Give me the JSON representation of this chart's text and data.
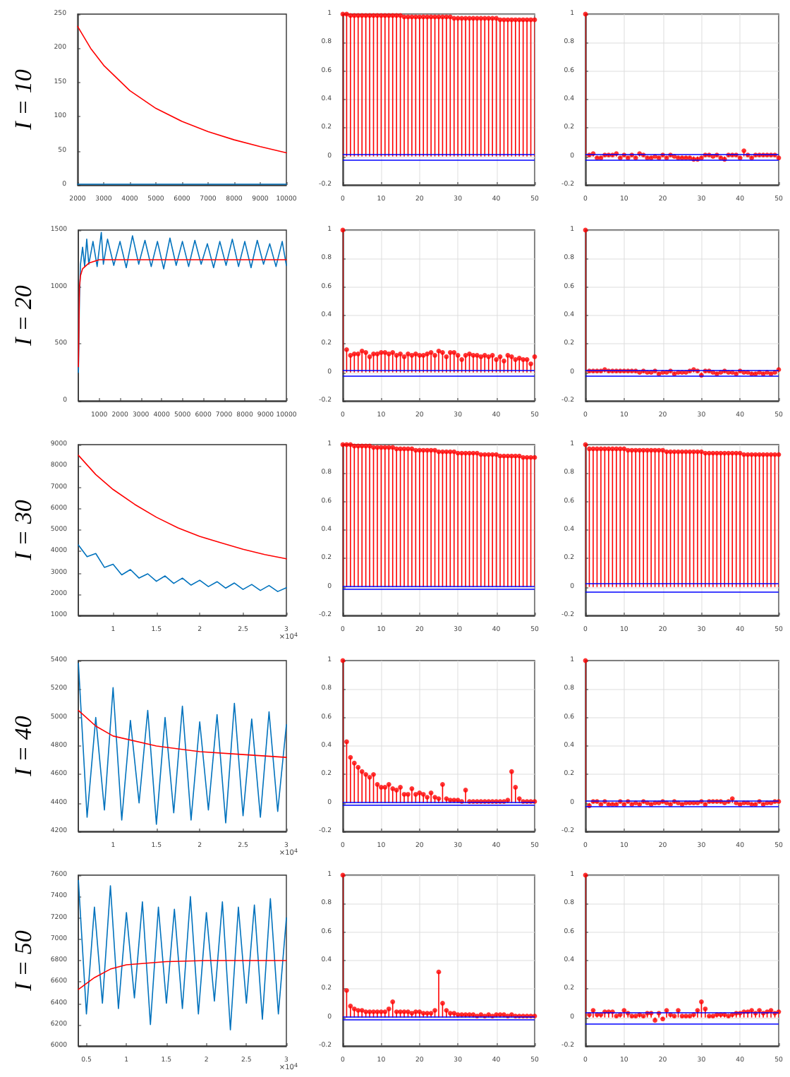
{
  "chart_data": [
    {
      "type": "line",
      "ylabel": "I = 10",
      "xlim": [
        2000,
        10000
      ],
      "xticks": [
        2000,
        3000,
        4000,
        5000,
        6000,
        7000,
        8000,
        9000,
        10000
      ],
      "ylim": [
        0,
        250
      ],
      "yticks": [
        0,
        50,
        100,
        150,
        200,
        250
      ],
      "series": [
        {
          "color": "#0072bd",
          "x": [
            2000,
            3000,
            4000,
            5000,
            6000,
            7000,
            8000,
            9000,
            10000
          ],
          "values": [
            1,
            1,
            1,
            1,
            1,
            1,
            1,
            1,
            1
          ]
        },
        {
          "color": "#ff0000",
          "x": [
            2000,
            2500,
            3000,
            4000,
            5000,
            6000,
            7000,
            8000,
            9000,
            10000
          ],
          "values": [
            232,
            200,
            175,
            138,
            112,
            93,
            78,
            66,
            56,
            47
          ]
        }
      ]
    },
    {
      "type": "lollipop",
      "color": "#ff0000",
      "marker": "circle",
      "grid": true,
      "xlim": [
        0,
        50
      ],
      "xticks": [
        0,
        10,
        20,
        30,
        40,
        50
      ],
      "ylim": [
        -0.2,
        1
      ],
      "yticks": [
        -0.2,
        0,
        0.2,
        0.4,
        0.6,
        0.8,
        1
      ],
      "x": [
        0,
        1,
        2,
        3,
        4,
        5,
        6,
        7,
        8,
        9,
        10,
        11,
        12,
        13,
        14,
        15,
        16,
        17,
        18,
        19,
        20,
        21,
        22,
        23,
        24,
        25,
        26,
        27,
        28,
        29,
        30,
        31,
        32,
        33,
        34,
        35,
        36,
        37,
        38,
        39,
        40,
        41,
        42,
        43,
        44,
        45,
        46,
        47,
        48,
        49,
        50
      ],
      "values": [
        1,
        1,
        0.99,
        0.99,
        0.99,
        0.99,
        0.99,
        0.99,
        0.99,
        0.99,
        0.99,
        0.99,
        0.99,
        0.99,
        0.99,
        0.99,
        0.98,
        0.98,
        0.98,
        0.98,
        0.98,
        0.98,
        0.98,
        0.98,
        0.98,
        0.98,
        0.98,
        0.98,
        0.98,
        0.97,
        0.97,
        0.97,
        0.97,
        0.97,
        0.97,
        0.97,
        0.97,
        0.97,
        0.97,
        0.97,
        0.97,
        0.96,
        0.96,
        0.96,
        0.96,
        0.96,
        0.96,
        0.96,
        0.96,
        0.96,
        0.96
      ],
      "ref_lines": [
        {
          "axis": "y",
          "value": 0.02,
          "color": "#0000ff"
        },
        {
          "axis": "y",
          "value": -0.02,
          "color": "#0000ff"
        }
      ]
    },
    {
      "type": "lollipop",
      "color": "#ff0000",
      "marker": "circle",
      "grid": true,
      "xlim": [
        0,
        50
      ],
      "xticks": [
        0,
        10,
        20,
        30,
        40,
        50
      ],
      "ylim": [
        -0.2,
        1
      ],
      "yticks": [
        -0.2,
        0,
        0.2,
        0.4,
        0.6,
        0.8,
        1
      ],
      "x": [
        0,
        1,
        2,
        3,
        4,
        5,
        6,
        7,
        8,
        9,
        10,
        11,
        12,
        13,
        14,
        15,
        16,
        17,
        18,
        19,
        20,
        21,
        22,
        23,
        24,
        25,
        26,
        27,
        28,
        29,
        30,
        31,
        32,
        33,
        34,
        35,
        36,
        37,
        38,
        39,
        40,
        41,
        42,
        43,
        44,
        45,
        46,
        47,
        48,
        49,
        50
      ],
      "values": [
        1,
        0.01,
        0.02,
        -0.01,
        -0.01,
        0.01,
        0.01,
        0.01,
        0.02,
        -0.01,
        0.01,
        -0.01,
        0.01,
        -0.01,
        0.02,
        0.01,
        -0.01,
        -0.01,
        0,
        -0.01,
        0.01,
        -0.01,
        0.01,
        0,
        -0.01,
        -0.01,
        -0.01,
        -0.01,
        -0.02,
        -0.02,
        -0.01,
        0.01,
        0.01,
        0,
        0.01,
        -0.01,
        -0.02,
        0.01,
        0.01,
        0.01,
        -0.01,
        0.04,
        0.01,
        -0.01,
        0.01,
        0.01,
        0.01,
        0.01,
        0.01,
        0.01,
        -0.01
      ],
      "ref_lines": [
        {
          "axis": "y",
          "value": 0.02,
          "color": "#0000ff"
        },
        {
          "axis": "y",
          "value": -0.02,
          "color": "#0000ff"
        }
      ]
    },
    {
      "type": "line",
      "ylabel": "I = 20",
      "xlim": [
        0,
        10000
      ],
      "xticks": [
        1000,
        2000,
        3000,
        4000,
        5000,
        6000,
        7000,
        8000,
        9000,
        10000
      ],
      "ylim": [
        0,
        1500
      ],
      "yticks": [
        0,
        500,
        1000,
        1500
      ],
      "series": [
        {
          "color": "#0072bd",
          "x": [
            0,
            50,
            100,
            200,
            300,
            400,
            500,
            700,
            900,
            1100,
            1200,
            1400,
            1700,
            2000,
            2300,
            2600,
            2900,
            3200,
            3500,
            3800,
            4100,
            4400,
            4700,
            5000,
            5300,
            5600,
            5900,
            6200,
            6500,
            6800,
            7100,
            7400,
            7700,
            8000,
            8300,
            8600,
            8900,
            9200,
            9500,
            9800,
            10000
          ],
          "values": [
            250,
            900,
            1200,
            1350,
            1180,
            1420,
            1200,
            1400,
            1180,
            1480,
            1200,
            1420,
            1190,
            1400,
            1170,
            1450,
            1200,
            1410,
            1180,
            1400,
            1160,
            1430,
            1190,
            1400,
            1180,
            1410,
            1200,
            1380,
            1170,
            1400,
            1190,
            1420,
            1180,
            1400,
            1170,
            1410,
            1200,
            1380,
            1180,
            1400,
            1190
          ]
        },
        {
          "color": "#ff0000",
          "x": [
            0,
            50,
            100,
            200,
            500,
            1000,
            2000,
            10000
          ],
          "values": [
            300,
            1000,
            1100,
            1160,
            1210,
            1240,
            1240,
            1240
          ]
        }
      ]
    },
    {
      "type": "lollipop",
      "color": "#ff0000",
      "marker": "circle",
      "grid": true,
      "xlim": [
        0,
        50
      ],
      "xticks": [
        0,
        10,
        20,
        30,
        40,
        50
      ],
      "ylim": [
        -0.2,
        1
      ],
      "yticks": [
        -0.2,
        0,
        0.2,
        0.4,
        0.6,
        0.8,
        1
      ],
      "x": [
        0,
        1,
        2,
        3,
        4,
        5,
        6,
        7,
        8,
        9,
        10,
        11,
        12,
        13,
        14,
        15,
        16,
        17,
        18,
        19,
        20,
        21,
        22,
        23,
        24,
        25,
        26,
        27,
        28,
        29,
        30,
        31,
        32,
        33,
        34,
        35,
        36,
        37,
        38,
        39,
        40,
        41,
        42,
        43,
        44,
        45,
        46,
        47,
        48,
        49,
        50
      ],
      "values": [
        1,
        0.16,
        0.12,
        0.13,
        0.13,
        0.15,
        0.14,
        0.11,
        0.13,
        0.13,
        0.14,
        0.14,
        0.13,
        0.14,
        0.12,
        0.13,
        0.11,
        0.13,
        0.12,
        0.13,
        0.12,
        0.12,
        0.13,
        0.14,
        0.12,
        0.15,
        0.14,
        0.11,
        0.14,
        0.14,
        0.12,
        0.09,
        0.12,
        0.13,
        0.12,
        0.12,
        0.11,
        0.12,
        0.11,
        0.12,
        0.09,
        0.11,
        0.08,
        0.12,
        0.11,
        0.09,
        0.1,
        0.09,
        0.09,
        0.06,
        0.11
      ],
      "ref_lines": [
        {
          "axis": "y",
          "value": 0.02,
          "color": "#0000ff"
        },
        {
          "axis": "y",
          "value": -0.02,
          "color": "#0000ff"
        }
      ]
    },
    {
      "type": "lollipop",
      "color": "#ff0000",
      "marker": "circle",
      "grid": true,
      "xlim": [
        0,
        50
      ],
      "xticks": [
        0,
        10,
        20,
        30,
        40,
        50
      ],
      "ylim": [
        -0.2,
        1
      ],
      "yticks": [
        -0.2,
        0,
        0.2,
        0.4,
        0.6,
        0.8,
        1
      ],
      "x": [
        0,
        1,
        2,
        3,
        4,
        5,
        6,
        7,
        8,
        9,
        10,
        11,
        12,
        13,
        14,
        15,
        16,
        17,
        18,
        19,
        20,
        21,
        22,
        23,
        24,
        25,
        26,
        27,
        28,
        29,
        30,
        31,
        32,
        33,
        34,
        35,
        36,
        37,
        38,
        39,
        40,
        41,
        42,
        43,
        44,
        45,
        46,
        47,
        48,
        49,
        50
      ],
      "values": [
        1,
        0.01,
        0.01,
        0.01,
        0.01,
        0.02,
        0.01,
        0.01,
        0.01,
        0.01,
        0.01,
        0.01,
        0.01,
        0.01,
        0,
        0.01,
        0,
        0,
        0.01,
        -0.01,
        0,
        0,
        0.01,
        -0.01,
        0,
        0,
        0,
        0.01,
        0.02,
        0.01,
        -0.02,
        0.01,
        0.01,
        0,
        -0.01,
        0,
        0.01,
        0,
        0,
        -0.01,
        0.01,
        0,
        0,
        -0.01,
        -0.01,
        0,
        -0.01,
        0,
        -0.01,
        0,
        0.02
      ],
      "ref_lines": [
        {
          "axis": "y",
          "value": 0.02,
          "color": "#0000ff"
        },
        {
          "axis": "y",
          "value": -0.02,
          "color": "#0000ff"
        }
      ]
    },
    {
      "type": "line",
      "ylabel": "I = 30",
      "xlim": [
        0.6,
        3
      ],
      "xticks": [
        1,
        1.5,
        2,
        2.5,
        3
      ],
      "ylim": [
        1000,
        9000
      ],
      "yticks": [
        1000,
        2000,
        3000,
        4000,
        5000,
        6000,
        7000,
        8000,
        9000
      ],
      "annotations": [
        "×10$^{4}$"
      ],
      "series": [
        {
          "color": "#0072bd",
          "x": [
            0.6,
            0.7,
            0.8,
            0.9,
            1,
            1.1,
            1.2,
            1.3,
            1.4,
            1.5,
            1.6,
            1.7,
            1.8,
            1.9,
            2,
            2.1,
            2.2,
            2.3,
            2.4,
            2.5,
            2.6,
            2.7,
            2.8,
            2.9,
            3
          ],
          "values": [
            4300,
            3750,
            3900,
            3250,
            3400,
            2900,
            3150,
            2750,
            2950,
            2600,
            2850,
            2500,
            2750,
            2420,
            2650,
            2350,
            2580,
            2280,
            2520,
            2220,
            2450,
            2170,
            2400,
            2120,
            2300
          ]
        },
        {
          "color": "#ff0000",
          "x": [
            0.6,
            0.8,
            1,
            1.25,
            1.5,
            1.75,
            2,
            2.25,
            2.5,
            2.75,
            3
          ],
          "values": [
            8500,
            7600,
            6900,
            6200,
            5600,
            5100,
            4700,
            4400,
            4100,
            3850,
            3650
          ]
        }
      ]
    },
    {
      "type": "lollipop",
      "color": "#ff0000",
      "marker": "circle",
      "grid": true,
      "xlim": [
        0,
        50
      ],
      "xticks": [
        0,
        10,
        20,
        30,
        40,
        50
      ],
      "ylim": [
        -0.2,
        1
      ],
      "yticks": [
        -0.2,
        0,
        0.2,
        0.4,
        0.6,
        0.8,
        1
      ],
      "x": [
        0,
        1,
        2,
        3,
        4,
        5,
        6,
        7,
        8,
        9,
        10,
        11,
        12,
        13,
        14,
        15,
        16,
        17,
        18,
        19,
        20,
        21,
        22,
        23,
        24,
        25,
        26,
        27,
        28,
        29,
        30,
        31,
        32,
        33,
        34,
        35,
        36,
        37,
        38,
        39,
        40,
        41,
        42,
        43,
        44,
        45,
        46,
        47,
        48,
        49,
        50
      ],
      "values": [
        1,
        1,
        1,
        0.99,
        0.99,
        0.99,
        0.99,
        0.99,
        0.98,
        0.98,
        0.98,
        0.98,
        0.98,
        0.98,
        0.97,
        0.97,
        0.97,
        0.97,
        0.97,
        0.96,
        0.96,
        0.96,
        0.96,
        0.96,
        0.96,
        0.95,
        0.95,
        0.95,
        0.95,
        0.95,
        0.94,
        0.94,
        0.94,
        0.94,
        0.94,
        0.94,
        0.93,
        0.93,
        0.93,
        0.93,
        0.93,
        0.92,
        0.92,
        0.92,
        0.92,
        0.92,
        0.92,
        0.91,
        0.91,
        0.91,
        0.91
      ],
      "ref_lines": [
        {
          "axis": "y",
          "value": 0.01,
          "color": "#0000ff"
        },
        {
          "axis": "y",
          "value": -0.01,
          "color": "#0000ff"
        }
      ]
    },
    {
      "type": "lollipop",
      "color": "#ff0000",
      "marker": "circle",
      "grid": true,
      "xlim": [
        0,
        50
      ],
      "xticks": [
        0,
        10,
        20,
        30,
        40,
        50
      ],
      "ylim": [
        -0.2,
        1
      ],
      "yticks": [
        -0.2,
        0,
        0.2,
        0.4,
        0.6,
        0.8,
        1
      ],
      "x": [
        0,
        1,
        2,
        3,
        4,
        5,
        6,
        7,
        8,
        9,
        10,
        11,
        12,
        13,
        14,
        15,
        16,
        17,
        18,
        19,
        20,
        21,
        22,
        23,
        24,
        25,
        26,
        27,
        28,
        29,
        30,
        31,
        32,
        33,
        34,
        35,
        36,
        37,
        38,
        39,
        40,
        41,
        42,
        43,
        44,
        45,
        46,
        47,
        48,
        49,
        50
      ],
      "values": [
        1,
        0.97,
        0.97,
        0.97,
        0.97,
        0.97,
        0.97,
        0.97,
        0.97,
        0.97,
        0.97,
        0.96,
        0.96,
        0.96,
        0.96,
        0.96,
        0.96,
        0.96,
        0.96,
        0.96,
        0.96,
        0.95,
        0.95,
        0.95,
        0.95,
        0.95,
        0.95,
        0.95,
        0.95,
        0.95,
        0.95,
        0.94,
        0.94,
        0.94,
        0.94,
        0.94,
        0.94,
        0.94,
        0.94,
        0.94,
        0.94,
        0.93,
        0.93,
        0.93,
        0.93,
        0.93,
        0.93,
        0.93,
        0.93,
        0.93,
        0.93
      ],
      "ref_lines": [
        {
          "axis": "y",
          "value": 0.03,
          "color": "#0000ff"
        },
        {
          "axis": "y",
          "value": -0.03,
          "color": "#0000ff"
        }
      ]
    },
    {
      "type": "line",
      "ylabel": "I = 40",
      "xlim": [
        0.6,
        3
      ],
      "xticks": [
        1,
        1.5,
        2,
        2.5,
        3
      ],
      "ylim": [
        4200,
        5400
      ],
      "yticks": [
        4200,
        4400,
        4600,
        4800,
        5000,
        5200,
        5400
      ],
      "annotations": [
        "×10$^{4}$"
      ],
      "series": [
        {
          "color": "#0072bd",
          "x": [
            0.6,
            0.7,
            0.8,
            0.9,
            1,
            1.1,
            1.2,
            1.3,
            1.4,
            1.5,
            1.6,
            1.7,
            1.8,
            1.9,
            2,
            2.1,
            2.2,
            2.3,
            2.4,
            2.5,
            2.6,
            2.7,
            2.8,
            2.9,
            3
          ],
          "values": [
            5380,
            4300,
            5000,
            4350,
            5210,
            4280,
            4980,
            4400,
            5050,
            4250,
            5000,
            4330,
            5080,
            4280,
            4970,
            4350,
            5020,
            4260,
            5100,
            4310,
            4990,
            4300,
            5040,
            4340,
            4950
          ]
        },
        {
          "color": "#ff0000",
          "x": [
            0.6,
            0.8,
            1,
            1.5,
            2,
            2.5,
            3
          ],
          "values": [
            5050,
            4940,
            4870,
            4800,
            4760,
            4740,
            4720
          ]
        }
      ]
    },
    {
      "type": "lollipop",
      "color": "#ff0000",
      "marker": "circle",
      "grid": true,
      "xlim": [
        0,
        50
      ],
      "xticks": [
        0,
        10,
        20,
        30,
        40,
        50
      ],
      "ylim": [
        -0.2,
        1
      ],
      "yticks": [
        -0.2,
        0,
        0.2,
        0.4,
        0.6,
        0.8,
        1
      ],
      "x": [
        0,
        1,
        2,
        3,
        4,
        5,
        6,
        7,
        8,
        9,
        10,
        11,
        12,
        13,
        14,
        15,
        16,
        17,
        18,
        19,
        20,
        21,
        22,
        23,
        24,
        25,
        26,
        27,
        28,
        29,
        30,
        31,
        32,
        33,
        34,
        35,
        36,
        37,
        38,
        39,
        40,
        41,
        42,
        43,
        44,
        45,
        46,
        47,
        48,
        49,
        50
      ],
      "values": [
        1,
        0.43,
        0.32,
        0.28,
        0.25,
        0.22,
        0.2,
        0.18,
        0.2,
        0.13,
        0.11,
        0.11,
        0.13,
        0.1,
        0.09,
        0.11,
        0.06,
        0.06,
        0.1,
        0.06,
        0.07,
        0.06,
        0.04,
        0.07,
        0.04,
        0.03,
        0.13,
        0.03,
        0.02,
        0.02,
        0.02,
        0.01,
        0.09,
        0.01,
        0.01,
        0.01,
        0.01,
        0.01,
        0.01,
        0.01,
        0.01,
        0.01,
        0.01,
        0.02,
        0.22,
        0.11,
        0.03,
        0.01,
        0.01,
        0.01,
        0.01
      ],
      "ref_lines": [
        {
          "axis": "y",
          "value": 0.01,
          "color": "#0000ff"
        },
        {
          "axis": "y",
          "value": -0.01,
          "color": "#0000ff"
        }
      ]
    },
    {
      "type": "lollipop",
      "color": "#ff0000",
      "marker": "circle",
      "grid": true,
      "xlim": [
        0,
        50
      ],
      "xticks": [
        0,
        10,
        20,
        30,
        40,
        50
      ],
      "ylim": [
        -0.2,
        1
      ],
      "yticks": [
        -0.2,
        0,
        0.2,
        0.4,
        0.6,
        0.8,
        1
      ],
      "x": [
        0,
        1,
        2,
        3,
        4,
        5,
        6,
        7,
        8,
        9,
        10,
        11,
        12,
        13,
        14,
        15,
        16,
        17,
        18,
        19,
        20,
        21,
        22,
        23,
        24,
        25,
        26,
        27,
        28,
        29,
        30,
        31,
        32,
        33,
        34,
        35,
        36,
        37,
        38,
        39,
        40,
        41,
        42,
        43,
        44,
        45,
        46,
        47,
        48,
        49,
        50
      ],
      "values": [
        1,
        -0.02,
        0.01,
        0.01,
        -0.01,
        0.01,
        -0.01,
        -0.01,
        -0.01,
        0.01,
        -0.01,
        0.01,
        -0.01,
        0,
        -0.01,
        0.01,
        0,
        -0.01,
        0,
        0,
        0.01,
        0,
        -0.01,
        0.01,
        0,
        -0.01,
        0,
        0,
        0,
        0,
        0.01,
        -0.01,
        0.01,
        0.01,
        0.01,
        0.01,
        0,
        0.01,
        0.03,
        0,
        -0.01,
        0,
        0,
        -0.01,
        -0.01,
        0.01,
        -0.01,
        0,
        0,
        0.01,
        0.01
      ],
      "ref_lines": [
        {
          "axis": "y",
          "value": 0.02,
          "color": "#0000ff"
        },
        {
          "axis": "y",
          "value": -0.02,
          "color": "#0000ff"
        }
      ]
    },
    {
      "type": "line",
      "ylabel": "I = 50",
      "xlim": [
        0.4,
        3
      ],
      "xticks": [
        0.5,
        1,
        1.5,
        2,
        2.5,
        3
      ],
      "ylim": [
        6000,
        7600
      ],
      "yticks": [
        6000,
        6200,
        6400,
        6600,
        6800,
        7000,
        7200,
        7400,
        7600
      ],
      "annotations": [
        "×10$^{4}$"
      ],
      "series": [
        {
          "color": "#0072bd",
          "x": [
            0.4,
            0.5,
            0.6,
            0.7,
            0.8,
            0.9,
            1,
            1.1,
            1.2,
            1.3,
            1.4,
            1.5,
            1.6,
            1.7,
            1.8,
            1.9,
            2,
            2.1,
            2.2,
            2.3,
            2.4,
            2.5,
            2.6,
            2.7,
            2.8,
            2.9,
            3
          ],
          "values": [
            7550,
            6300,
            7300,
            6400,
            7500,
            6350,
            7250,
            6450,
            7350,
            6200,
            7300,
            6400,
            7280,
            6350,
            7400,
            6300,
            7250,
            6420,
            7350,
            6150,
            7300,
            6400,
            7320,
            6250,
            7380,
            6300,
            7200
          ]
        },
        {
          "color": "#ff0000",
          "x": [
            0.4,
            0.6,
            0.8,
            1,
            1.5,
            2,
            3
          ],
          "values": [
            6530,
            6640,
            6720,
            6760,
            6790,
            6800,
            6800
          ]
        }
      ]
    },
    {
      "type": "lollipop",
      "color": "#ff0000",
      "marker": "circle",
      "grid": true,
      "xlim": [
        0,
        50
      ],
      "xticks": [
        0,
        10,
        20,
        30,
        40,
        50
      ],
      "ylim": [
        -0.2,
        1
      ],
      "yticks": [
        -0.2,
        0,
        0.2,
        0.4,
        0.6,
        0.8,
        1
      ],
      "x": [
        0,
        1,
        2,
        3,
        4,
        5,
        6,
        7,
        8,
        9,
        10,
        11,
        12,
        13,
        14,
        15,
        16,
        17,
        18,
        19,
        20,
        21,
        22,
        23,
        24,
        25,
        26,
        27,
        28,
        29,
        30,
        31,
        32,
        33,
        34,
        35,
        36,
        37,
        38,
        39,
        40,
        41,
        42,
        43,
        44,
        45,
        46,
        47,
        48,
        49,
        50
      ],
      "values": [
        1,
        0.19,
        0.08,
        0.06,
        0.05,
        0.05,
        0.04,
        0.04,
        0.04,
        0.04,
        0.04,
        0.04,
        0.06,
        0.11,
        0.04,
        0.04,
        0.04,
        0.04,
        0.03,
        0.04,
        0.04,
        0.03,
        0.03,
        0.03,
        0.05,
        0.32,
        0.1,
        0.05,
        0.03,
        0.03,
        0.02,
        0.02,
        0.02,
        0.02,
        0.02,
        0.01,
        0.02,
        0.01,
        0.02,
        0.01,
        0.02,
        0.02,
        0.02,
        0.01,
        0.02,
        0.01,
        0.01,
        0.01,
        0.01,
        0.01,
        0.01
      ],
      "ref_lines": [
        {
          "axis": "y",
          "value": 0.01,
          "color": "#0000ff"
        },
        {
          "axis": "y",
          "value": -0.01,
          "color": "#0000ff"
        }
      ]
    },
    {
      "type": "lollipop",
      "color": "#ff0000",
      "marker": "circle",
      "grid": true,
      "xlim": [
        0,
        50
      ],
      "xticks": [
        0,
        10,
        20,
        30,
        40,
        50
      ],
      "ylim": [
        -0.2,
        1
      ],
      "yticks": [
        -0.2,
        0,
        0.2,
        0.4,
        0.6,
        0.8,
        1
      ],
      "x": [
        0,
        1,
        2,
        3,
        4,
        5,
        6,
        7,
        8,
        9,
        10,
        11,
        12,
        13,
        14,
        15,
        16,
        17,
        18,
        19,
        20,
        21,
        22,
        23,
        24,
        25,
        26,
        27,
        28,
        29,
        30,
        31,
        32,
        33,
        34,
        35,
        36,
        37,
        38,
        39,
        40,
        41,
        42,
        43,
        44,
        45,
        46,
        47,
        48,
        49,
        50
      ],
      "values": [
        1,
        0.02,
        0.05,
        0.02,
        0.02,
        0.04,
        0.04,
        0.04,
        0.01,
        0.02,
        0.05,
        0.03,
        0.01,
        0.01,
        0.02,
        0.01,
        0.03,
        0.03,
        -0.02,
        0.03,
        -0.01,
        0.05,
        0.02,
        0.01,
        0.05,
        0.01,
        0.01,
        0.01,
        0.02,
        0.05,
        0.11,
        0.06,
        0.01,
        0.01,
        0.02,
        0.02,
        0.02,
        0.01,
        0.02,
        0.03,
        0.03,
        0.04,
        0.04,
        0.05,
        0.03,
        0.05,
        0.03,
        0.04,
        0.05,
        0.03,
        0.04
      ],
      "ref_lines": [
        {
          "axis": "y",
          "value": 0.04,
          "color": "#0000ff"
        },
        {
          "axis": "y",
          "value": -0.04,
          "color": "#0000ff"
        }
      ]
    }
  ]
}
